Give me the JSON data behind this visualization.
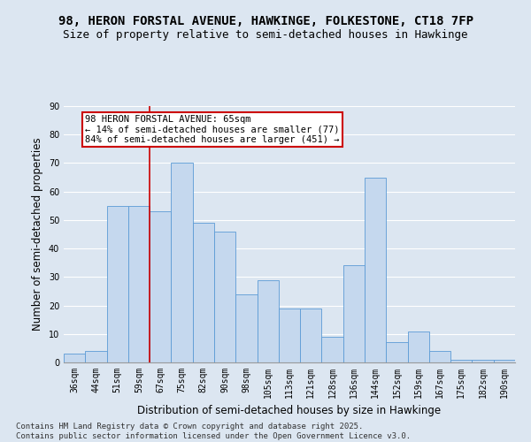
{
  "title": "98, HERON FORSTAL AVENUE, HAWKINGE, FOLKESTONE, CT18 7FP",
  "subtitle": "Size of property relative to semi-detached houses in Hawkinge",
  "xlabel": "Distribution of semi-detached houses by size in Hawkinge",
  "ylabel": "Number of semi-detached properties",
  "categories": [
    "36sqm",
    "44sqm",
    "51sqm",
    "59sqm",
    "67sqm",
    "75sqm",
    "82sqm",
    "90sqm",
    "98sqm",
    "105sqm",
    "113sqm",
    "121sqm",
    "128sqm",
    "136sqm",
    "144sqm",
    "152sqm",
    "159sqm",
    "167sqm",
    "175sqm",
    "182sqm",
    "190sqm"
  ],
  "values": [
    3,
    4,
    55,
    55,
    53,
    70,
    49,
    46,
    24,
    29,
    19,
    19,
    9,
    34,
    65,
    7,
    11,
    4,
    1,
    1,
    1
  ],
  "bar_color": "#c5d8ee",
  "bar_edge_color": "#5b9bd5",
  "red_line_index": 4,
  "annotation_text": "98 HERON FORSTAL AVENUE: 65sqm\n← 14% of semi-detached houses are smaller (77)\n84% of semi-detached houses are larger (451) →",
  "annotation_box_color": "#ffffff",
  "annotation_box_edge": "#cc0000",
  "red_line_color": "#cc0000",
  "ylim": [
    0,
    90
  ],
  "yticks": [
    0,
    10,
    20,
    30,
    40,
    50,
    60,
    70,
    80,
    90
  ],
  "footer_text": "Contains HM Land Registry data © Crown copyright and database right 2025.\nContains public sector information licensed under the Open Government Licence v3.0.",
  "background_color": "#dce6f1",
  "plot_bg_color": "#dce6f1",
  "grid_color": "#ffffff",
  "title_fontsize": 10,
  "subtitle_fontsize": 9,
  "axis_label_fontsize": 8.5,
  "tick_fontsize": 7,
  "footer_fontsize": 6.5,
  "annotation_fontsize": 7.5
}
